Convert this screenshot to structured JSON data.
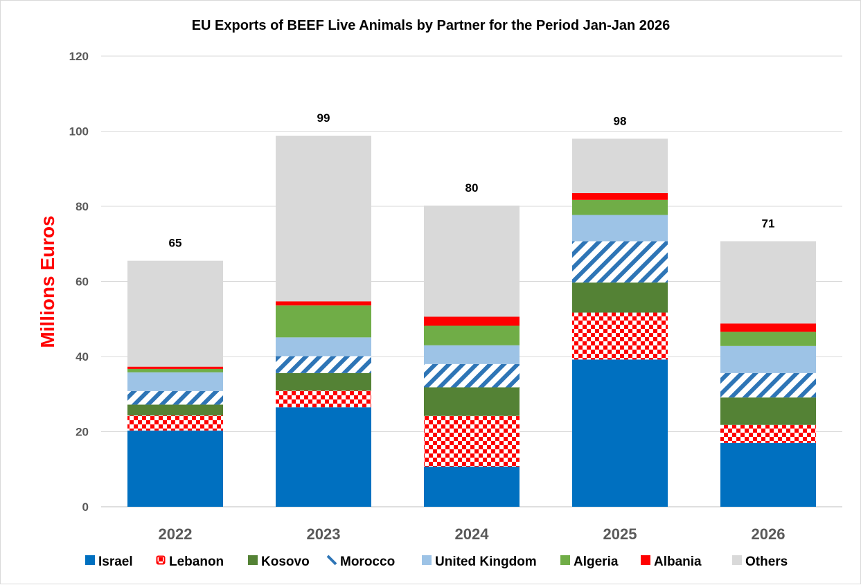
{
  "chart_data": {
    "type": "bar",
    "stacked": true,
    "title": "EU Exports of BEEF Live Animals by Partner for the Period Jan-Jan 2026",
    "ylabel": "Millions Euros",
    "xlabel": "",
    "categories": [
      "2022",
      "2023",
      "2024",
      "2025",
      "2026"
    ],
    "ylim": [
      0,
      120
    ],
    "yticks": [
      "0",
      "20",
      "40",
      "60",
      "80",
      "100",
      "120"
    ],
    "grid": true,
    "legend_position": "bottom",
    "totals": [
      "65",
      "99",
      "80",
      "98",
      "71"
    ],
    "series": [
      {
        "name": "Israel",
        "color": "#0070C0",
        "pattern": "solid",
        "values": [
          20.3,
          26.5,
          10.7,
          39.2,
          17.0
        ]
      },
      {
        "name": "Lebanon",
        "color": "#FF0000",
        "pattern": "checker",
        "values": [
          4.0,
          4.4,
          13.5,
          12.5,
          4.8
        ]
      },
      {
        "name": "Kosovo",
        "color": "#548235",
        "pattern": "solid",
        "values": [
          2.9,
          4.7,
          7.6,
          8.0,
          7.3
        ]
      },
      {
        "name": "Morocco",
        "color": "#2E75B6",
        "pattern": "diagonal",
        "values": [
          3.6,
          4.5,
          6.2,
          11.0,
          6.5
        ]
      },
      {
        "name": "United Kingdom",
        "color": "#9DC3E6",
        "pattern": "solid",
        "values": [
          5.0,
          5.0,
          5.0,
          7.0,
          7.2
        ]
      },
      {
        "name": "Algeria",
        "color": "#70AD47",
        "pattern": "solid",
        "values": [
          0.9,
          8.5,
          5.2,
          4.0,
          3.8
        ]
      },
      {
        "name": "Albania",
        "color": "#FF0000",
        "pattern": "solid",
        "values": [
          0.6,
          1.1,
          2.4,
          1.8,
          2.2
        ]
      },
      {
        "name": "Others",
        "color": "#D9D9D9",
        "pattern": "solid",
        "values": [
          28.2,
          44.1,
          29.6,
          14.5,
          21.9
        ]
      }
    ]
  },
  "colors": {
    "ylabel": "#FF0000",
    "grid": "#D9D9D9",
    "tick_text": "#595959"
  }
}
